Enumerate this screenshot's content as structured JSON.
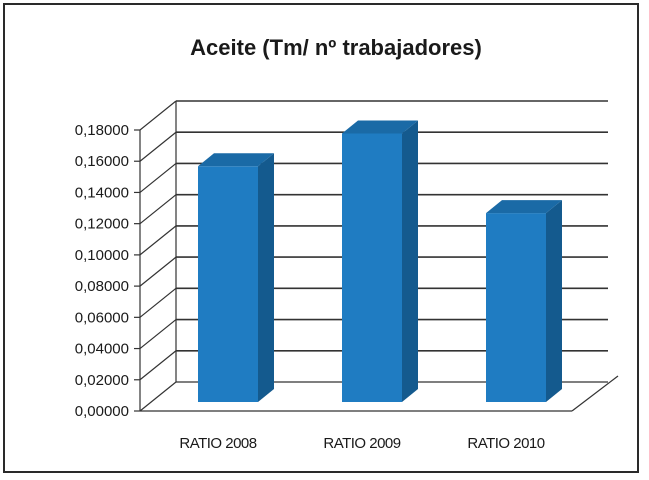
{
  "chart_data": {
    "type": "bar",
    "title": "Aceite (Tm/ nº trabajadores)",
    "categories": [
      "RATIO 2008",
      "RATIO 2009",
      "RATIO 2010"
    ],
    "values": [
      0.151,
      0.172,
      0.121
    ],
    "ylim": [
      0,
      0.18
    ],
    "yticks": [
      "0,00000",
      "0,02000",
      "0,04000",
      "0,06000",
      "0,08000",
      "0,10000",
      "0,12000",
      "0,14000",
      "0,16000",
      "0,18000"
    ],
    "xlabel": "",
    "ylabel": "",
    "grid": true,
    "legend": "none",
    "style": "3d-column",
    "colors": {
      "bar_front": "#1f7cc2",
      "bar_side": "#145a8e",
      "bar_top": "#1a6aa6",
      "grid": "#333333"
    }
  }
}
